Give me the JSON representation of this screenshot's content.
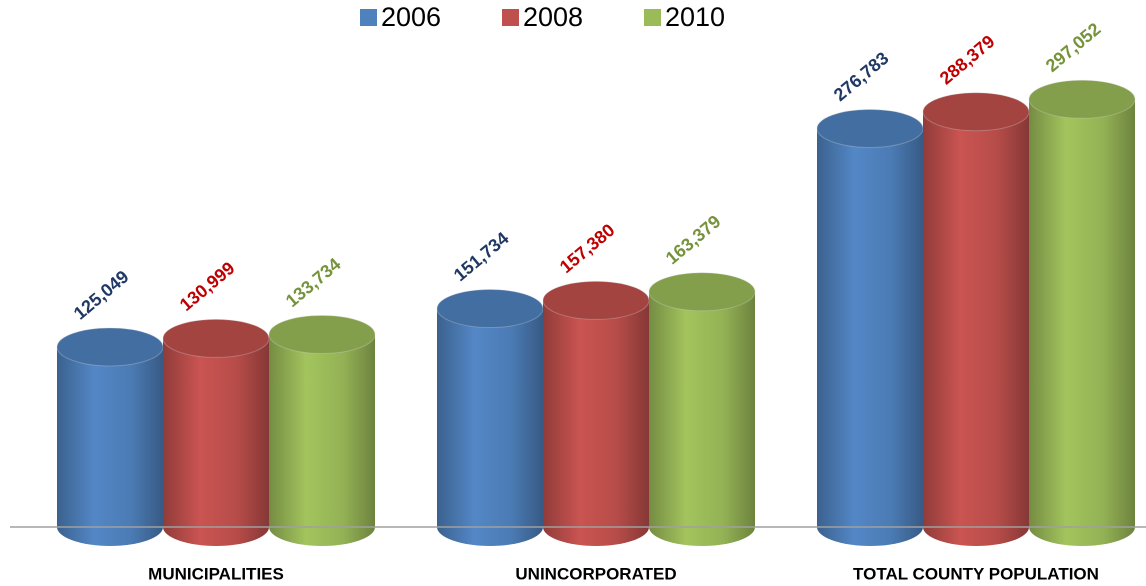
{
  "chart_data": {
    "type": "cylinder_bar",
    "categories": [
      "MUNICIPALITIES",
      "UNINCORPORATED",
      "TOTAL COUNTY POPULATION"
    ],
    "series": [
      {
        "name": "2006",
        "color": "#4f81bd",
        "label_color": "#1f3864",
        "values": [
          125049,
          151734,
          276783
        ],
        "value_labels": [
          "125,049",
          "151,734",
          "276,783"
        ]
      },
      {
        "name": "2008",
        "color": "#c0504d",
        "label_color": "#c00000",
        "values": [
          130999,
          157380,
          288379
        ],
        "value_labels": [
          "130,999",
          "157,380",
          "288,379"
        ]
      },
      {
        "name": "2010",
        "color": "#9bbb59",
        "label_color": "#76933c",
        "values": [
          133734,
          163379,
          297052
        ],
        "value_labels": [
          "133,734",
          "163,379",
          "297,052"
        ]
      }
    ],
    "ylim": [
      0,
      366000
    ],
    "legend": "top"
  }
}
